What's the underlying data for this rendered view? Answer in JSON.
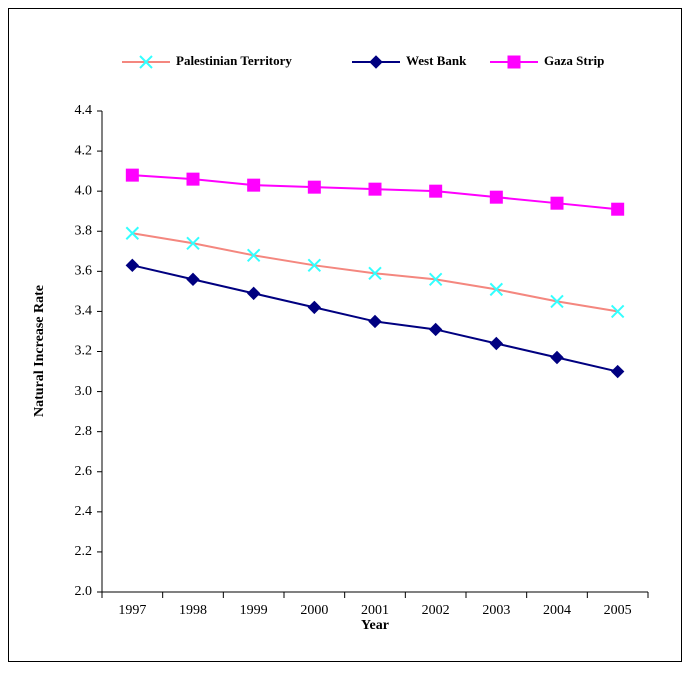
{
  "chart_data": {
    "type": "line",
    "x_label": "Year",
    "y_label": "Natural Increase Rate",
    "categories": [
      "1997",
      "1998",
      "1999",
      "2000",
      "2001",
      "2002",
      "2003",
      "2004",
      "2005"
    ],
    "series": [
      {
        "name": "Palestinian Territory",
        "color": "#f4877f",
        "marker": "x",
        "marker_color": "#33ffff",
        "values": [
          3.79,
          3.74,
          3.68,
          3.63,
          3.59,
          3.56,
          3.51,
          3.45,
          3.4
        ]
      },
      {
        "name": "West Bank",
        "color": "#000080",
        "marker": "diamond",
        "marker_color": "#000080",
        "values": [
          3.63,
          3.56,
          3.49,
          3.42,
          3.35,
          3.31,
          3.24,
          3.17,
          3.1
        ]
      },
      {
        "name": "Gaza Strip",
        "color": "#ff00ff",
        "marker": "square",
        "marker_color": "#ff00ff",
        "values": [
          4.08,
          4.06,
          4.03,
          4.02,
          4.01,
          4.0,
          3.97,
          3.94,
          3.91
        ]
      }
    ],
    "ylim": [
      2,
      4.4
    ],
    "yticks": [
      {
        "value": 2,
        "label": "2.0"
      },
      2.2,
      2.4,
      2.6,
      2.8,
      {
        "value": 3,
        "label": "3.0"
      },
      3.2,
      3.4,
      3.6,
      3.8,
      {
        "value": 4,
        "label": "4.0"
      },
      4.2,
      4.4
    ],
    "grid": false,
    "legend": "top"
  }
}
